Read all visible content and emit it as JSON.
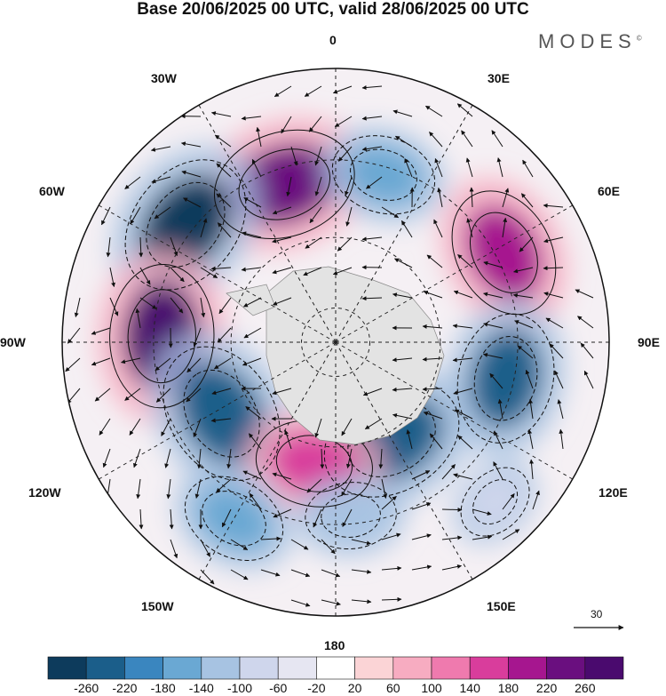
{
  "title": "Base 20/06/2025 00 UTC, valid 28/06/2025 00 UTC",
  "brand": "MODES",
  "brand_mark": "©",
  "longitude_labels": {
    "lon_0": "0",
    "lon_30E": "30E",
    "lon_60E": "60E",
    "lon_90E": "90E",
    "lon_120E": "120E",
    "lon_150E": "150E",
    "lon_180": "180",
    "lon_150W": "150W",
    "lon_120W": "120W",
    "lon_90W": "90W",
    "lon_60W": "60W",
    "lon_30W": "30W"
  },
  "reference_vector_label": "30",
  "colorbar": {
    "labels": [
      "-260",
      "-220",
      "-180",
      "-140",
      "-100",
      "-60",
      "-20",
      "20",
      "60",
      "100",
      "140",
      "180",
      "220",
      "260"
    ],
    "colors": [
      "#0d3b5c",
      "#1b5e8a",
      "#3a86bf",
      "#6aa8d3",
      "#a7c3e2",
      "#cfd6ec",
      "#e6e6f2",
      "#ffffff",
      "#fbd4d6",
      "#f7acc1",
      "#ef7aae",
      "#d93d9c",
      "#a6168f",
      "#6a0f7f",
      "#4a0a6e"
    ]
  },
  "map": {
    "projection": "south-polar-stereographic",
    "land_color": "#e3e3e3",
    "anomaly_centers": [
      {
        "lon": -18,
        "lat": -44,
        "value": 260,
        "color": "#6a0f7f"
      },
      {
        "lon": 16,
        "lat": -42,
        "value": -140,
        "color": "#6aa8d3"
      },
      {
        "lon": 62,
        "lat": -38,
        "value": 220,
        "color": "#a6168f"
      },
      {
        "lon": -52,
        "lat": -38,
        "value": -260,
        "color": "#0d3b5c"
      },
      {
        "lon": -88,
        "lat": -42,
        "value": 260,
        "color": "#4a0a6e"
      },
      {
        "lon": -122,
        "lat": -52,
        "value": -260,
        "color": "#1b5e8a"
      },
      {
        "lon": 102,
        "lat": -42,
        "value": -220,
        "color": "#1b5e8a"
      },
      {
        "lon": 150,
        "lat": -58,
        "value": -260,
        "color": "#1b5e8a"
      },
      {
        "lon": -170,
        "lat": -55,
        "value": 180,
        "color": "#d93d9c"
      },
      {
        "lon": 175,
        "lat": -42,
        "value": -100,
        "color": "#a7c3e2"
      },
      {
        "lon": -150,
        "lat": -35,
        "value": -140,
        "color": "#6aa8d3"
      },
      {
        "lon": 135,
        "lat": -30,
        "value": -60,
        "color": "#cfd6ec"
      }
    ]
  }
}
